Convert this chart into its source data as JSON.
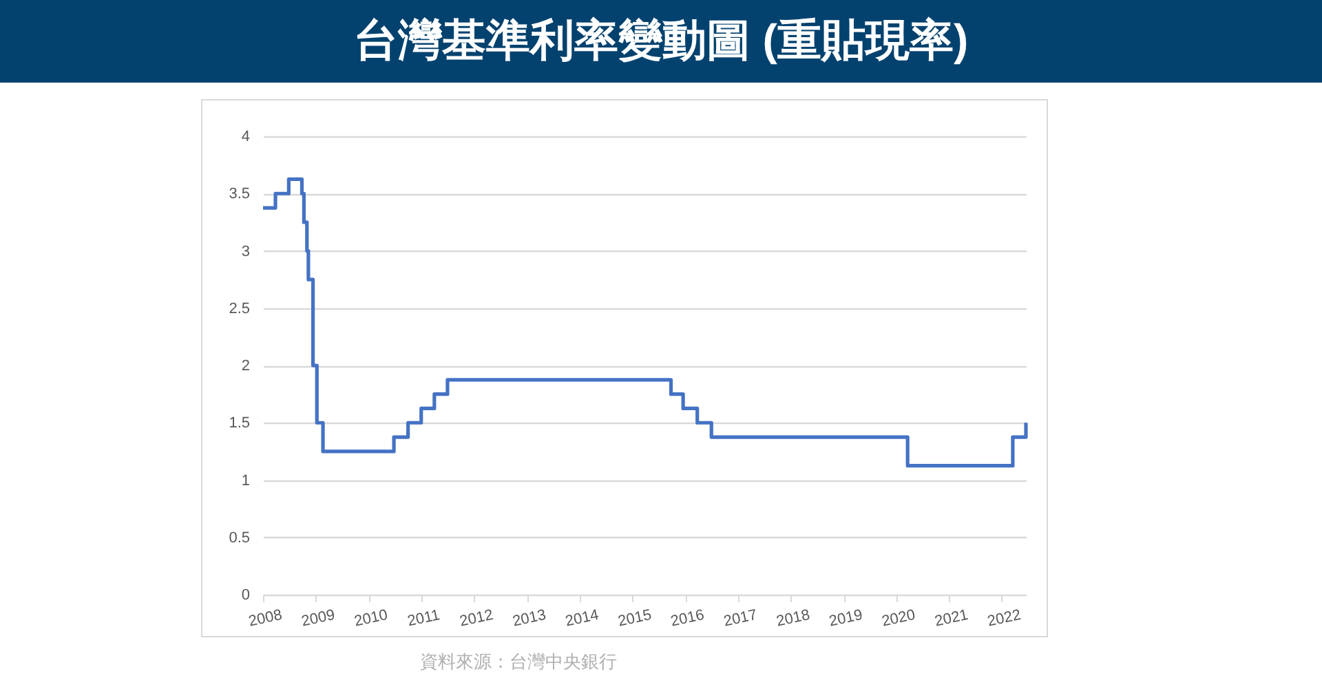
{
  "chart_data": {
    "type": "step",
    "title": "台灣基準利率變動圖 (重貼現率)",
    "annotations": [
      "資料來源：台灣中央銀行"
    ],
    "x": [
      "2008-01-01",
      "2008-03-27",
      "2008-06-27",
      "2008-09-26",
      "2008-10-10",
      "2008-10-31",
      "2008-11-10",
      "2008-12-12",
      "2009-01-08",
      "2009-02-19",
      "2010-06-25",
      "2010-10-01",
      "2010-12-31",
      "2011-04-01",
      "2011-07-01",
      "2015-09-25",
      "2015-12-18",
      "2016-03-25",
      "2016-07-01",
      "2020-03-20",
      "2022-03-18",
      "2022-06-17"
    ],
    "values": [
      3.375,
      3.5,
      3.625,
      3.5,
      3.25,
      3,
      2.75,
      2,
      1.5,
      1.25,
      1.375,
      1.5,
      1.625,
      1.75,
      1.875,
      1.75,
      1.625,
      1.5,
      1.375,
      1.125,
      1.375,
      1.5
    ],
    "color": "#4472c4",
    "xlim": [
      "2008-01-01",
      "2022-06-17"
    ],
    "xticks": [
      "2008",
      "2009",
      "2010",
      "2011",
      "2012",
      "2013",
      "2014",
      "2015",
      "2016",
      "2017",
      "2018",
      "2019",
      "2020",
      "2021",
      "2022"
    ],
    "ylim": [
      0,
      4
    ],
    "yticks": [
      0,
      0.5,
      1,
      1.5,
      2,
      2.5,
      3,
      3.5,
      4
    ],
    "grid": "y",
    "legend": false,
    "marker": "none",
    "line_style": "solid"
  }
}
